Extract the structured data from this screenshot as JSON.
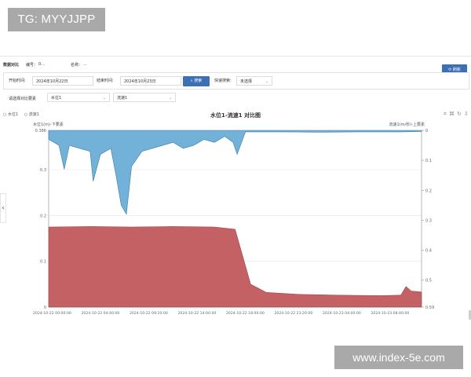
{
  "watermarks": {
    "top": "TG: MYYJJPP",
    "bottom": "www.index-5e.com"
  },
  "header": {
    "title": "数据对比",
    "code_label": "编号：",
    "code_value": "0...",
    "name_label": "名称：",
    "name_value": "...",
    "refresh_label": "刷新"
  },
  "filters": {
    "start_label": "开始时间:",
    "start_value": "2024年10月22日",
    "end_label": "结束时间:",
    "end_value": "2024年10月23日",
    "search_label": "搜索",
    "quick_label": "快速搜索:",
    "quick_value": "未选择"
  },
  "compare": {
    "label": "请选择对比要素",
    "left_value": "水位1",
    "right_value": "流速1"
  },
  "chart_data": {
    "type": "area",
    "title": "水位1-流速1 对比图",
    "legend": [
      "水位1",
      "流速1"
    ],
    "legend_placement": "top-left",
    "left_axis_label": "水位1(m)-下要素",
    "right_axis_label": "流速1(m/秒)-上要素",
    "left_ticks": [
      "0.386",
      "0.3",
      "0.2",
      "0.1",
      "0"
    ],
    "right_ticks": [
      "0",
      "0.1",
      "0.2",
      "0.3",
      "0.4",
      "0.5",
      "0.59"
    ],
    "x_ticks": [
      "2024-10-22 00:00:00",
      "2024-10-22 04:40:00",
      "2024-10-22 09:20:00",
      "2024-10-22 14:00:00",
      "2024-10-22 18:40:00",
      "2024-10-22 23:20:00",
      "2024-10-23 04:00:00",
      "2024-10-23 08:40:00"
    ],
    "x_hours_range": [
      0,
      36
    ],
    "ylim_left": [
      0,
      0.386
    ],
    "ylim_right": [
      0,
      0.59
    ],
    "series": [
      {
        "name": "水位1",
        "axis": "left",
        "color": "#c0595d",
        "x_hours": [
          0,
          4,
          8,
          12,
          16,
          18,
          19.5,
          21,
          24,
          28,
          32,
          34,
          34.5,
          35,
          36
        ],
        "values": [
          0.175,
          0.176,
          0.175,
          0.176,
          0.175,
          0.17,
          0.05,
          0.032,
          0.028,
          0.026,
          0.025,
          0.026,
          0.045,
          0.035,
          0.033
        ]
      },
      {
        "name": "流速1",
        "axis": "right",
        "color": "#6aaed6",
        "x_hours": [
          0,
          1,
          1.5,
          2,
          3,
          4,
          4.3,
          5,
          6,
          6.5,
          7,
          7.5,
          8,
          9,
          10,
          11,
          12,
          13,
          14,
          15,
          16,
          17,
          17.8,
          18.2,
          19,
          22,
          26,
          30,
          34,
          36
        ],
        "values": [
          0.03,
          0.05,
          0.13,
          0.05,
          0.06,
          0.07,
          0.17,
          0.08,
          0.06,
          0.15,
          0.25,
          0.28,
          0.12,
          0.07,
          0.06,
          0.05,
          0.04,
          0.06,
          0.05,
          0.03,
          0.04,
          0.02,
          0.04,
          0.08,
          0.005,
          0.005,
          0.006,
          0.005,
          0.005,
          0.004
        ]
      }
    ]
  }
}
